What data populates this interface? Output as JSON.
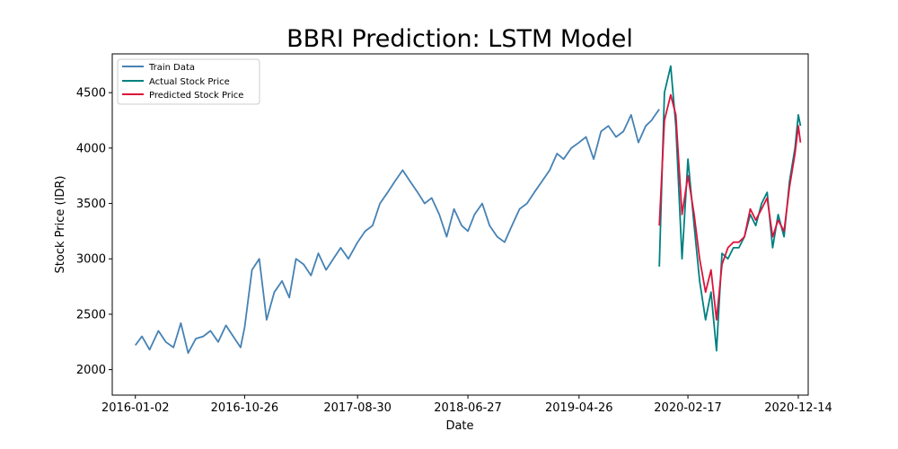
{
  "chart_data": {
    "type": "line",
    "title": "BBRI Prediction: LSTM Model",
    "xlabel": "Date",
    "ylabel": "Stock Price (IDR)",
    "xlim": [
      "2015-10-31",
      "2021-01-10"
    ],
    "ylim": [
      1770,
      4850
    ],
    "x_ticks": [
      "2016-01-02",
      "2016-10-26",
      "2017-08-30",
      "2018-06-27",
      "2019-04-26",
      "2020-02-17",
      "2020-12-14"
    ],
    "y_ticks": [
      2000,
      2500,
      3000,
      3500,
      4000,
      4500
    ],
    "grid": false,
    "legend_position": "upper left",
    "colors": {
      "Train Data": "#4682b4",
      "Actual Stock Price": "#008080",
      "Predicted Stock Price": "#dc143c"
    },
    "series": [
      {
        "name": "Train Data",
        "x": [
          "2016-01-02",
          "2016-01-20",
          "2016-02-10",
          "2016-03-05",
          "2016-03-25",
          "2016-04-15",
          "2016-05-05",
          "2016-05-25",
          "2016-06-15",
          "2016-07-05",
          "2016-07-25",
          "2016-08-15",
          "2016-09-05",
          "2016-09-25",
          "2016-10-15",
          "2016-10-26",
          "2016-11-15",
          "2016-12-05",
          "2016-12-25",
          "2017-01-15",
          "2017-02-05",
          "2017-02-25",
          "2017-03-15",
          "2017-04-05",
          "2017-04-25",
          "2017-05-15",
          "2017-06-05",
          "2017-06-25",
          "2017-07-15",
          "2017-08-05",
          "2017-08-30",
          "2017-09-20",
          "2017-10-10",
          "2017-10-30",
          "2017-11-20",
          "2017-12-10",
          "2017-12-31",
          "2018-01-20",
          "2018-02-10",
          "2018-03-01",
          "2018-03-20",
          "2018-04-10",
          "2018-04-30",
          "2018-05-20",
          "2018-06-10",
          "2018-06-27",
          "2018-07-15",
          "2018-08-05",
          "2018-08-25",
          "2018-09-15",
          "2018-10-05",
          "2018-10-25",
          "2018-11-15",
          "2018-12-05",
          "2018-12-25",
          "2019-01-15",
          "2019-02-05",
          "2019-02-25",
          "2019-03-15",
          "2019-04-05",
          "2019-04-26",
          "2019-05-15",
          "2019-06-05",
          "2019-06-25",
          "2019-07-15",
          "2019-08-05",
          "2019-08-25",
          "2019-09-15",
          "2019-10-05",
          "2019-10-25",
          "2019-11-10",
          "2019-11-20",
          "2019-12-01"
        ],
        "y": [
          2220,
          2300,
          2180,
          2350,
          2250,
          2200,
          2420,
          2150,
          2280,
          2300,
          2350,
          2250,
          2400,
          2300,
          2200,
          2380,
          2900,
          3000,
          2450,
          2700,
          2800,
          2650,
          3000,
          2950,
          2850,
          3050,
          2900,
          3000,
          3100,
          3000,
          3150,
          3250,
          3300,
          3500,
          3600,
          3700,
          3800,
          3700,
          3600,
          3500,
          3550,
          3400,
          3200,
          3450,
          3300,
          3250,
          3400,
          3500,
          3300,
          3200,
          3150,
          3300,
          3450,
          3500,
          3600,
          3700,
          3800,
          3950,
          3900,
          4000,
          4050,
          4100,
          3900,
          4150,
          4200,
          4100,
          4150,
          4300,
          4050,
          4200,
          4250,
          4300,
          4350
        ]
      },
      {
        "name": "Actual Stock Price",
        "x": [
          "2019-12-01",
          "2019-12-15",
          "2020-01-01",
          "2020-01-15",
          "2020-02-01",
          "2020-02-17",
          "2020-03-05",
          "2020-03-20",
          "2020-04-05",
          "2020-04-20",
          "2020-05-05",
          "2020-05-20",
          "2020-06-05",
          "2020-06-20",
          "2020-07-05",
          "2020-07-20",
          "2020-08-05",
          "2020-08-20",
          "2020-09-05",
          "2020-09-20",
          "2020-10-05",
          "2020-10-20",
          "2020-11-05",
          "2020-11-20",
          "2020-12-05",
          "2020-12-14",
          "2020-12-20"
        ],
        "y": [
          2930,
          4500,
          4740,
          4200,
          3000,
          3900,
          3300,
          2800,
          2450,
          2700,
          2170,
          3050,
          3000,
          3100,
          3100,
          3200,
          3400,
          3300,
          3500,
          3600,
          3100,
          3400,
          3200,
          3700,
          4000,
          4300,
          4200
        ]
      },
      {
        "name": "Predicted Stock Price",
        "x": [
          "2019-12-01",
          "2019-12-15",
          "2020-01-01",
          "2020-01-15",
          "2020-02-01",
          "2020-02-17",
          "2020-03-05",
          "2020-03-20",
          "2020-04-05",
          "2020-04-20",
          "2020-05-05",
          "2020-05-20",
          "2020-06-05",
          "2020-06-20",
          "2020-07-05",
          "2020-07-20",
          "2020-08-05",
          "2020-08-20",
          "2020-09-05",
          "2020-09-20",
          "2020-10-05",
          "2020-10-20",
          "2020-11-05",
          "2020-11-20",
          "2020-12-05",
          "2020-12-14",
          "2020-12-20"
        ],
        "y": [
          3300,
          4250,
          4480,
          4300,
          3400,
          3750,
          3400,
          3000,
          2700,
          2900,
          2450,
          2950,
          3100,
          3150,
          3150,
          3200,
          3450,
          3350,
          3450,
          3550,
          3200,
          3350,
          3250,
          3650,
          3950,
          4200,
          4050
        ]
      }
    ]
  }
}
